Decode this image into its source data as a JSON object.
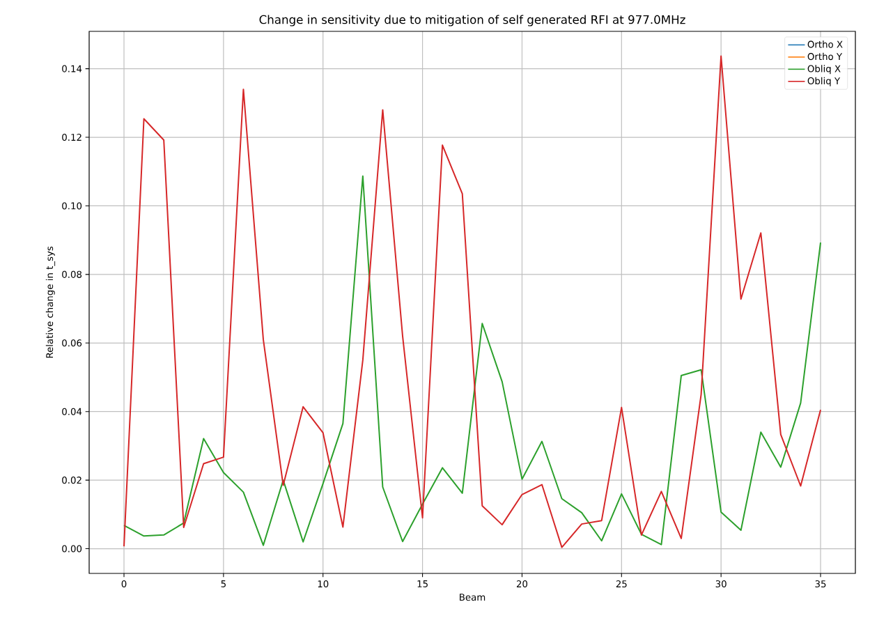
{
  "chart_data": {
    "type": "line",
    "title": "Change in sensitivity due to mitigation of self generated RFI at 977.0MHz",
    "xlabel": "Beam",
    "ylabel": "Relative change in t_sys",
    "x": [
      0,
      1,
      2,
      3,
      4,
      5,
      6,
      7,
      8,
      9,
      10,
      11,
      12,
      13,
      14,
      15,
      16,
      17,
      18,
      19,
      20,
      21,
      22,
      23,
      24,
      25,
      26,
      27,
      28,
      29,
      30,
      31,
      32,
      33,
      34,
      35
    ],
    "series": [
      {
        "name": "Ortho X",
        "color": "#1f77b4",
        "values": [
          null,
          null,
          null,
          null,
          null,
          null,
          null,
          null,
          null,
          null,
          null,
          null,
          null,
          null,
          null,
          null,
          null,
          null,
          null,
          null,
          null,
          null,
          null,
          null,
          null,
          null,
          null,
          null,
          null,
          null,
          null,
          null,
          null,
          null,
          null,
          null
        ]
      },
      {
        "name": "Ortho Y",
        "color": "#ff7f0e",
        "values": [
          null,
          null,
          null,
          null,
          null,
          null,
          null,
          null,
          null,
          null,
          null,
          null,
          null,
          null,
          null,
          null,
          null,
          null,
          null,
          null,
          null,
          null,
          null,
          null,
          null,
          null,
          null,
          null,
          null,
          null,
          null,
          null,
          null,
          null,
          null,
          null
        ]
      },
      {
        "name": "Obliq X",
        "color": "#2ca02c",
        "values": [
          0.0068,
          0.0037,
          0.004,
          0.0075,
          0.0321,
          0.0222,
          0.0165,
          0.001,
          0.02,
          0.002,
          0.019,
          0.0365,
          0.1087,
          0.018,
          0.0021,
          0.013,
          0.0236,
          0.0162,
          0.0657,
          0.0487,
          0.0203,
          0.0313,
          0.0146,
          0.0105,
          0.0023,
          0.016,
          0.0042,
          0.0012,
          0.0505,
          0.0522,
          0.0107,
          0.0054,
          0.034,
          0.0238,
          0.0425,
          0.0893
        ]
      },
      {
        "name": "Obliq Y",
        "color": "#d62728",
        "values": [
          0.0007,
          0.1254,
          0.1192,
          0.0062,
          0.0248,
          0.0267,
          0.134,
          0.061,
          0.0185,
          0.0414,
          0.0338,
          0.0063,
          0.055,
          0.128,
          0.062,
          0.009,
          0.1177,
          0.1035,
          0.0125,
          0.007,
          0.0158,
          0.0187,
          0.0004,
          0.0072,
          0.0082,
          0.0412,
          0.004,
          0.0167,
          0.003,
          0.045,
          0.1437,
          0.0728,
          0.0921,
          0.0333,
          0.0183,
          0.0405
        ]
      }
    ],
    "xlim": [
      -1.75,
      36.75
    ],
    "ylim": [
      -0.0072,
      0.1509
    ],
    "xticks": [
      0,
      5,
      10,
      15,
      20,
      25,
      30,
      35
    ],
    "yticks": [
      {
        "value": 0,
        "label": "0.00"
      },
      {
        "value": 0.02,
        "label": "0.02"
      },
      {
        "value": 0.04,
        "label": "0.04"
      },
      {
        "value": 0.06,
        "label": "0.06"
      },
      {
        "value": 0.08,
        "label": "0.08"
      },
      {
        "value": 0.1,
        "label": "0.10"
      },
      {
        "value": 0.12,
        "label": "0.12"
      },
      {
        "value": 0.14,
        "label": "0.14"
      }
    ],
    "grid": true,
    "legend": "top right",
    "marker": "none",
    "line_style": "solid"
  }
}
